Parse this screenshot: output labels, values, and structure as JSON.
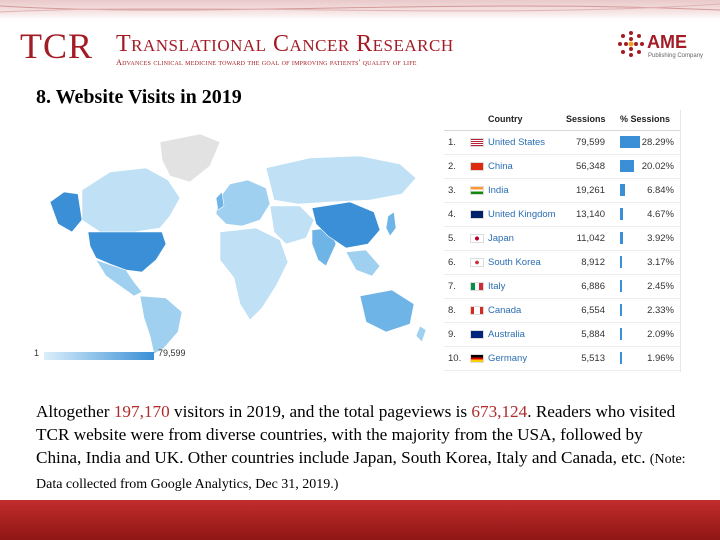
{
  "header": {
    "logo": "TCR",
    "journal_name": "Translational Cancer Research",
    "tagline": "Advances clinical medicine toward the goal of improving patients' quality of life",
    "publisher": "AME",
    "publisher_sub": "Publishing Company"
  },
  "slide_title": "8. Website Visits in 2019",
  "map_legend": {
    "min": "1",
    "max": "79,599"
  },
  "table": {
    "columns": [
      "Country",
      "Sessions",
      "% Sessions"
    ],
    "rows": [
      {
        "rank": "1.",
        "country": "United States",
        "sessions": "79,599",
        "pct": "28.29%",
        "pct_value": 28.29,
        "flag": "us"
      },
      {
        "rank": "2.",
        "country": "China",
        "sessions": "56,348",
        "pct": "20.02%",
        "pct_value": 20.02,
        "flag": "cn"
      },
      {
        "rank": "3.",
        "country": "India",
        "sessions": "19,261",
        "pct": "6.84%",
        "pct_value": 6.84,
        "flag": "in"
      },
      {
        "rank": "4.",
        "country": "United Kingdom",
        "sessions": "13,140",
        "pct": "4.67%",
        "pct_value": 4.67,
        "flag": "gb"
      },
      {
        "rank": "5.",
        "country": "Japan",
        "sessions": "11,042",
        "pct": "3.92%",
        "pct_value": 3.92,
        "flag": "jp"
      },
      {
        "rank": "6.",
        "country": "South Korea",
        "sessions": "8,912",
        "pct": "3.17%",
        "pct_value": 3.17,
        "flag": "kr"
      },
      {
        "rank": "7.",
        "country": "Italy",
        "sessions": "6,886",
        "pct": "2.45%",
        "pct_value": 2.45,
        "flag": "it"
      },
      {
        "rank": "8.",
        "country": "Canada",
        "sessions": "6,554",
        "pct": "2.33%",
        "pct_value": 2.33,
        "flag": "ca"
      },
      {
        "rank": "9.",
        "country": "Australia",
        "sessions": "5,884",
        "pct": "2.09%",
        "pct_value": 2.09,
        "flag": "au"
      },
      {
        "rank": "10.",
        "country": "Germany",
        "sessions": "5,513",
        "pct": "1.96%",
        "pct_value": 1.96,
        "flag": "de"
      }
    ]
  },
  "paragraph": {
    "p1": "Altogether ",
    "visitors": "197,170",
    "p2": " visitors in 2019, and the total pageviews is ",
    "pageviews": "673,124",
    "p3": ". Readers who visited TCR website were from diverse countries, with the majority from the USA, followed by China, India and UK. Other countries include Japan, South Korea, Italy and Canada, etc. ",
    "note": "(Note: Data collected from Google Analytics, Dec 31, 2019.)"
  },
  "colors": {
    "brand_red": "#a31c25",
    "map_dark": "#3a8fd6",
    "map_light": "#bfe0f5",
    "link_blue": "#2a6db3"
  }
}
